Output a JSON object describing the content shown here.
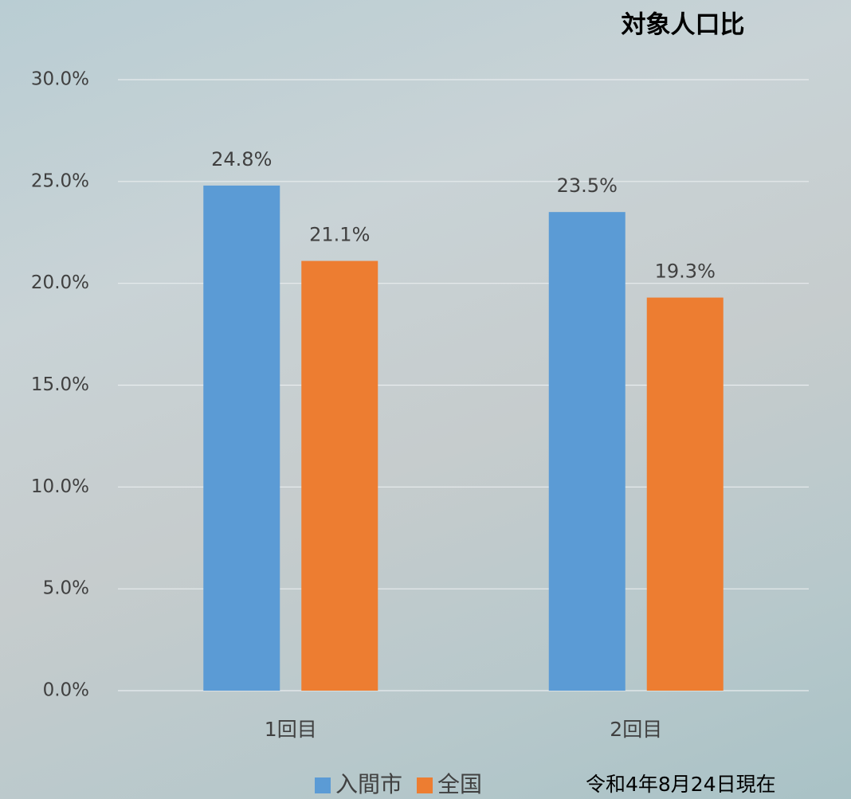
{
  "chart_data": {
    "type": "bar",
    "title": "対象人口比",
    "categories": [
      "1回目",
      "2回目"
    ],
    "series": [
      {
        "name": "入間市",
        "color": "#5b9bd5",
        "values": [
          24.8,
          23.5
        ],
        "value_labels": [
          "24.8%",
          "23.5%"
        ]
      },
      {
        "name": "全国",
        "color": "#ed7d31",
        "values": [
          21.1,
          19.3
        ],
        "value_labels": [
          "21.1%",
          "19.3%"
        ]
      }
    ],
    "ylim": [
      0,
      30
    ],
    "yticks": [
      {
        "value": 0,
        "label": "0.0%"
      },
      {
        "value": 5,
        "label": "5.0%"
      },
      {
        "value": 10,
        "label": "10.0%"
      },
      {
        "value": 15,
        "label": "15.0%"
      },
      {
        "value": 20,
        "label": "20.0%"
      },
      {
        "value": 25,
        "label": "25.0%"
      },
      {
        "value": 30,
        "label": "30.0%"
      }
    ],
    "grid": true,
    "legend": "bottom",
    "annotation": "令和4年8月24日現在"
  }
}
